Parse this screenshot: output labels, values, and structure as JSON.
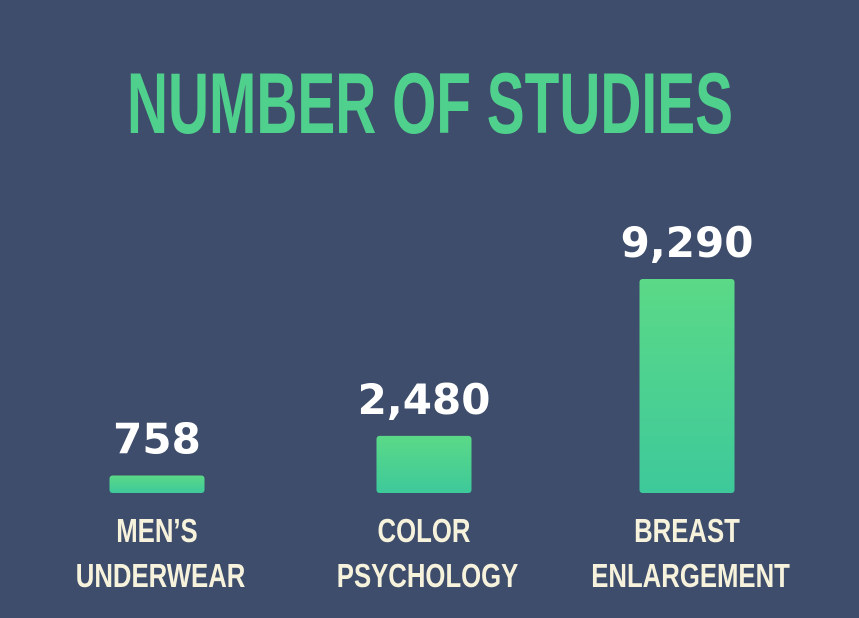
{
  "chart_data": {
    "type": "bar",
    "title": "NUMBER OF STUDIES",
    "categories": [
      "MEN’S UNDERWEAR",
      "COLOR PSYCHOLOGY",
      "BREAST ENLARGEMENT"
    ],
    "values": [
      758,
      2480,
      9290
    ],
    "value_labels": [
      "758",
      "2,480",
      "9,290"
    ],
    "color": "#5bd987"
  }
}
